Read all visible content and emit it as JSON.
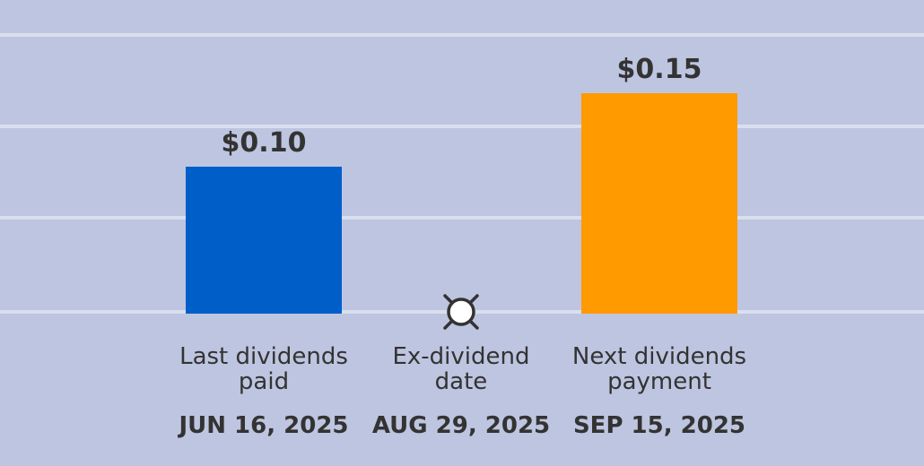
{
  "colors": {
    "background": "#bec5e0",
    "gridline": "#d9dfee",
    "text": "#333333",
    "last_bar": "#005ec9",
    "next_bar": "#ff9a00",
    "marker_fill": "#ffffff",
    "marker_stroke": "#333333"
  },
  "chart_data": {
    "type": "bar",
    "title": "",
    "xlabel": "",
    "ylabel": "",
    "ylim": [
      0,
      0.2
    ],
    "grid": true,
    "legend": "none",
    "categories": [
      [
        "Last dividends",
        "paid"
      ],
      [
        "Ex-dividend",
        "date"
      ],
      [
        "Next dividends",
        "payment"
      ]
    ],
    "dates": [
      "JUN 16, 2025",
      "AUG 29, 2025",
      "SEP 15, 2025"
    ],
    "values": [
      0.1,
      null,
      0.15
    ],
    "value_labels": [
      "$0.10",
      "",
      "$0.15"
    ],
    "bar_colors": [
      "#005ec9",
      null,
      "#ff9a00"
    ],
    "marker": {
      "category_index": 1,
      "icon": "ex-dividend-marker-icon"
    }
  }
}
